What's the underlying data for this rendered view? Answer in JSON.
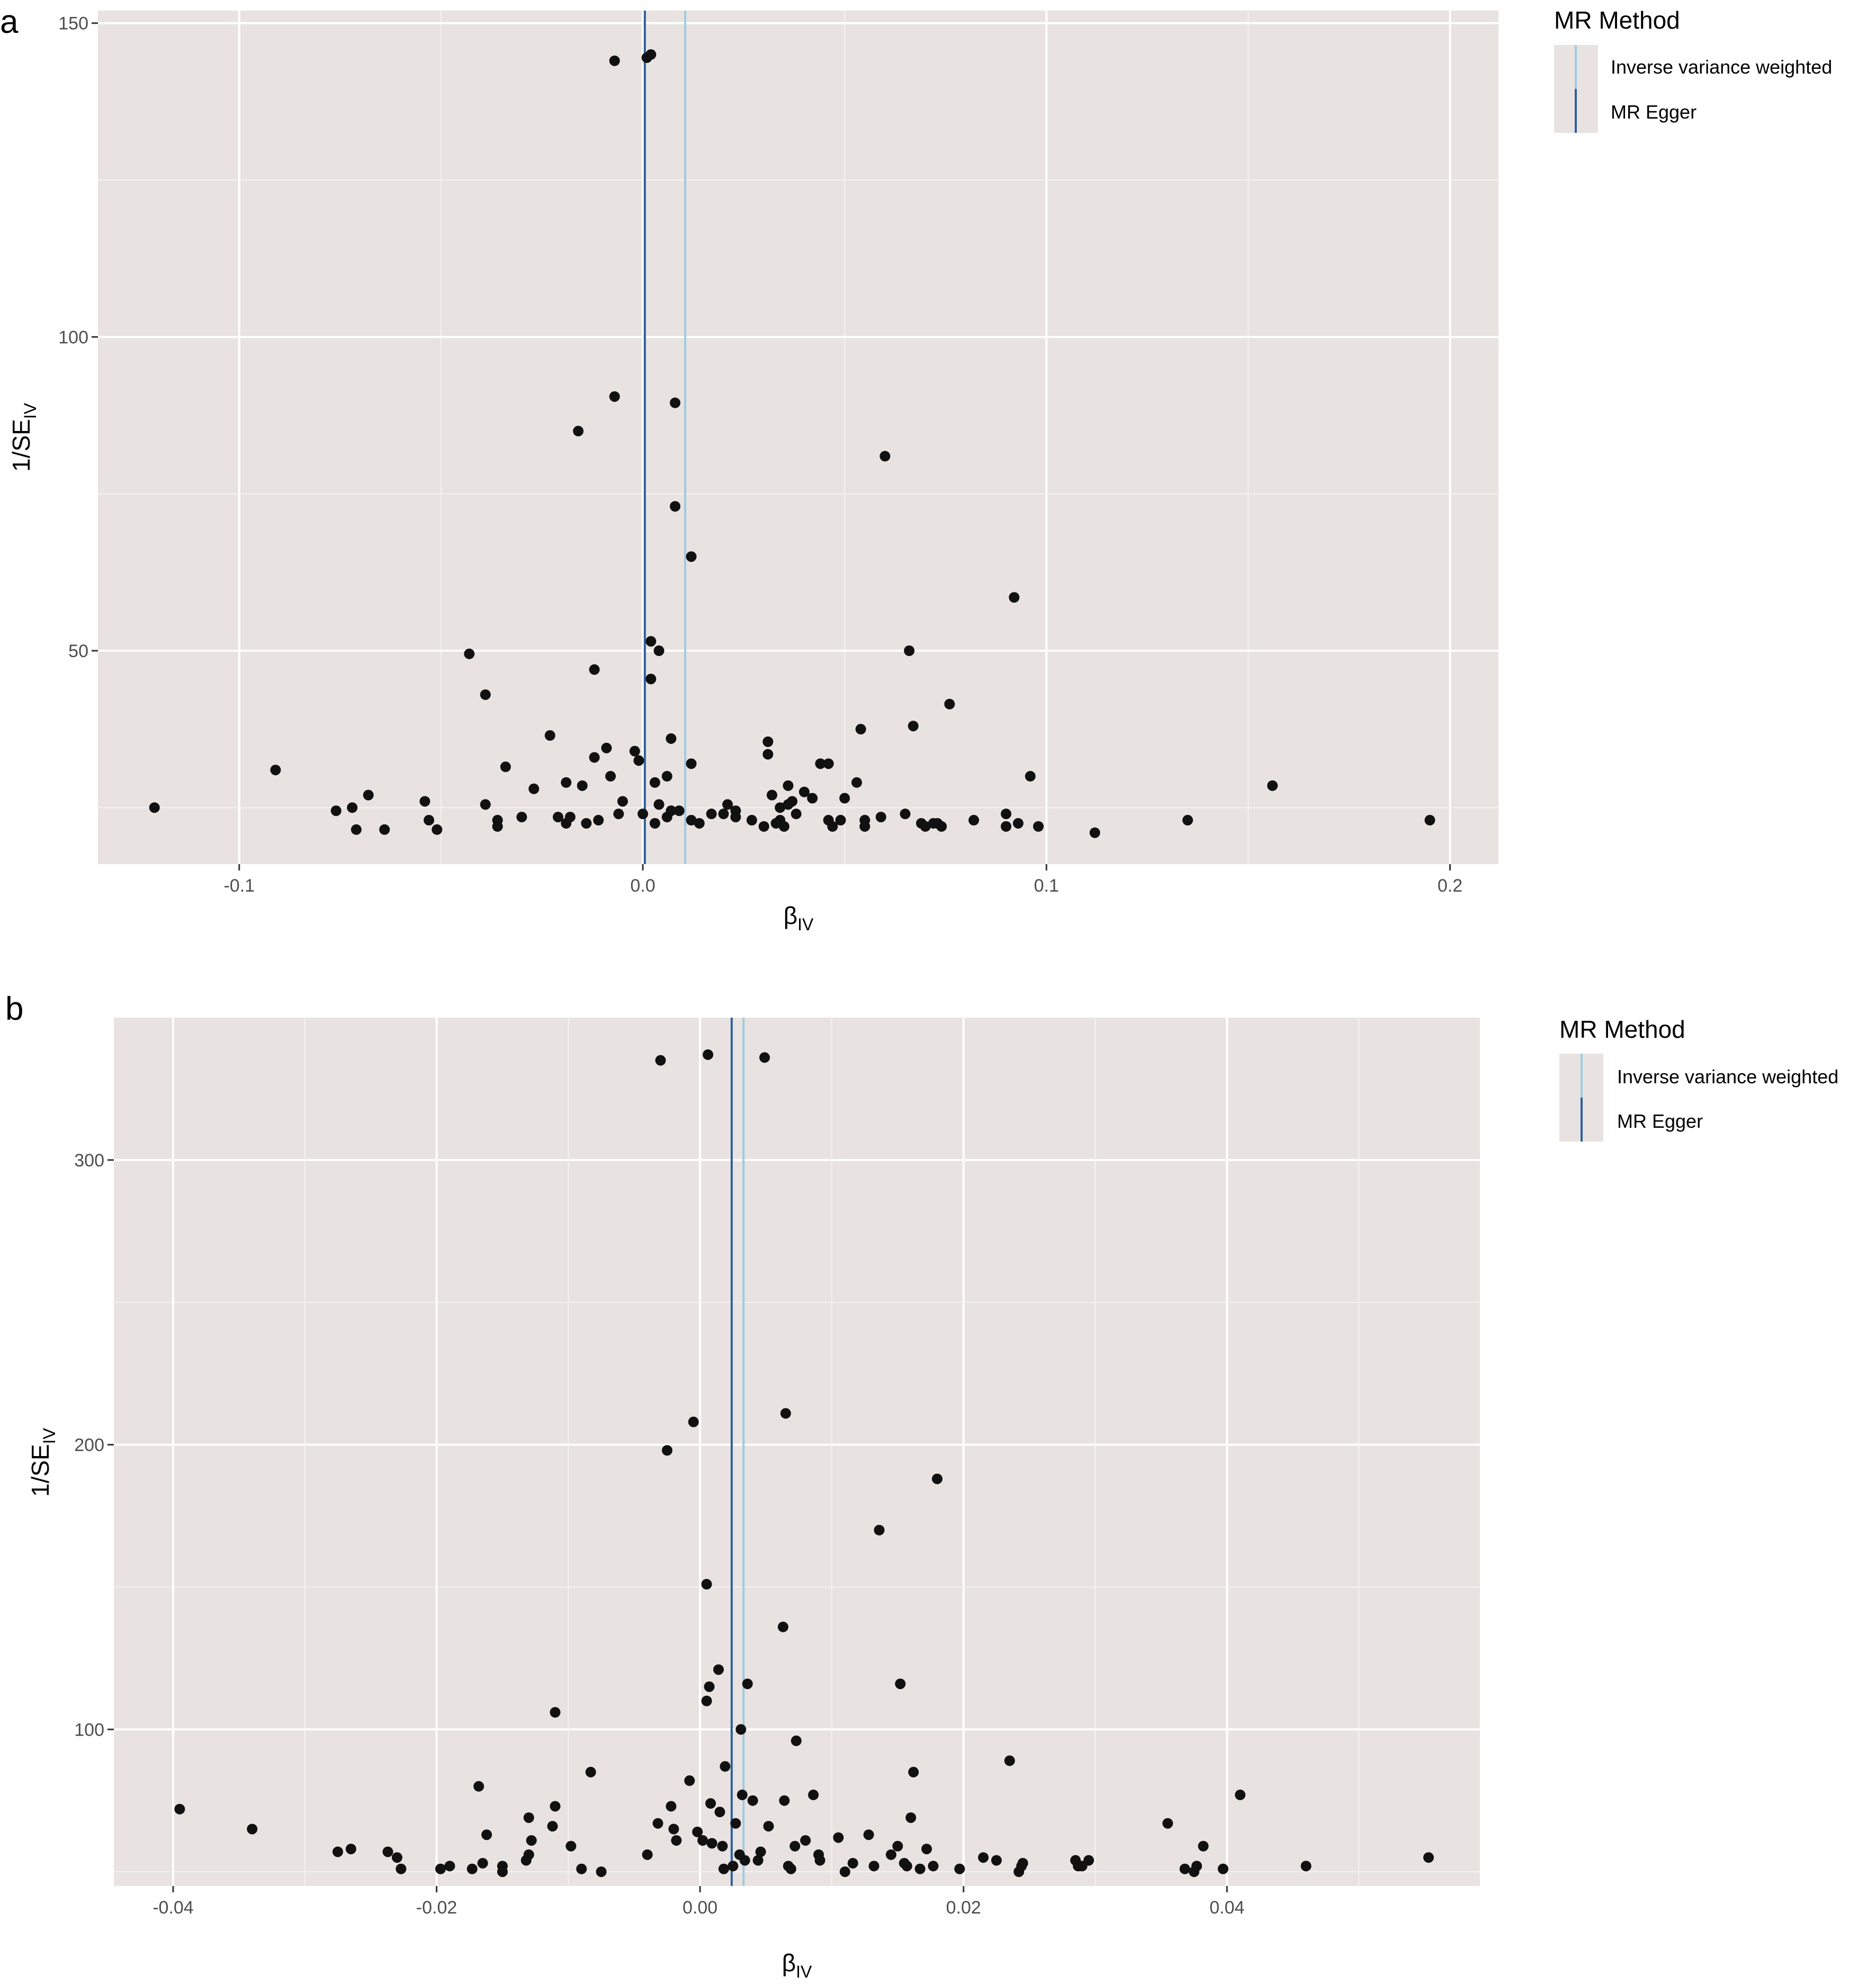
{
  "chart_data": [
    {
      "panel": "a",
      "type": "scatter",
      "xlabel": "β",
      "xlabel_sub": "IV",
      "ylabel": "1/SE",
      "ylabel_sub": "IV",
      "xlim": [
        -0.135,
        0.212
      ],
      "ylim": [
        16,
        152
      ],
      "x_ticks": [
        -0.1,
        0.0,
        0.1,
        0.2
      ],
      "x_tick_labels": [
        "-0.1",
        "0.0",
        "0.1",
        "0.2"
      ],
      "y_ticks": [
        50,
        100,
        150
      ],
      "y_tick_labels": [
        "50",
        "100",
        "150"
      ],
      "grid": true,
      "legend": {
        "title": "MR Method",
        "position": "right",
        "items": [
          {
            "label": "Inverse variance weighted",
            "color": "#9ecae1"
          },
          {
            "label": "MR Egger",
            "color": "#2c5fa0"
          }
        ]
      },
      "lines": [
        {
          "method": "Inverse variance weighted",
          "x": 0.0105,
          "color": "#9ecae1"
        },
        {
          "method": "MR Egger",
          "x": 0.0005,
          "color": "#2c5fa0"
        }
      ],
      "points": [
        [
          -0.121,
          25.0
        ],
        [
          -0.091,
          31.0
        ],
        [
          -0.076,
          24.5
        ],
        [
          -0.072,
          25.0
        ],
        [
          -0.071,
          21.5
        ],
        [
          -0.068,
          27.0
        ],
        [
          -0.064,
          21.5
        ],
        [
          -0.054,
          26.0
        ],
        [
          -0.053,
          23.0
        ],
        [
          -0.051,
          21.5
        ],
        [
          -0.043,
          49.5
        ],
        [
          -0.039,
          43.0
        ],
        [
          -0.039,
          25.5
        ],
        [
          -0.036,
          23.0
        ],
        [
          -0.036,
          22.0
        ],
        [
          -0.034,
          31.5
        ],
        [
          -0.03,
          23.5
        ],
        [
          -0.027,
          28.0
        ],
        [
          -0.023,
          36.5
        ],
        [
          -0.021,
          23.5
        ],
        [
          -0.019,
          22.5
        ],
        [
          -0.019,
          29.0
        ],
        [
          -0.018,
          23.5
        ],
        [
          -0.016,
          85.0
        ],
        [
          -0.015,
          28.5
        ],
        [
          -0.014,
          22.5
        ],
        [
          -0.012,
          33.0
        ],
        [
          -0.012,
          47.0
        ],
        [
          -0.011,
          23.0
        ],
        [
          -0.009,
          34.5
        ],
        [
          -0.008,
          30.0
        ],
        [
          -0.007,
          144.0
        ],
        [
          -0.007,
          90.5
        ],
        [
          -0.006,
          24.0
        ],
        [
          -0.005,
          26.0
        ],
        [
          -0.002,
          34.0
        ],
        [
          -0.001,
          32.5
        ],
        [
          0.0,
          24.0
        ],
        [
          0.001,
          144.5
        ],
        [
          0.002,
          145.0
        ],
        [
          0.002,
          51.5
        ],
        [
          0.002,
          45.5
        ],
        [
          0.003,
          29.0
        ],
        [
          0.003,
          22.5
        ],
        [
          0.004,
          50.0
        ],
        [
          0.004,
          25.5
        ],
        [
          0.006,
          30.0
        ],
        [
          0.006,
          23.5
        ],
        [
          0.007,
          36.0
        ],
        [
          0.007,
          24.5
        ],
        [
          0.008,
          89.5
        ],
        [
          0.008,
          73.0
        ],
        [
          0.009,
          24.5
        ],
        [
          0.012,
          65.0
        ],
        [
          0.012,
          32.0
        ],
        [
          0.012,
          23.0
        ],
        [
          0.014,
          22.5
        ],
        [
          0.017,
          24.0
        ],
        [
          0.02,
          24.0
        ],
        [
          0.021,
          25.5
        ],
        [
          0.023,
          24.5
        ],
        [
          0.023,
          23.5
        ],
        [
          0.027,
          23.0
        ],
        [
          0.03,
          22.0
        ],
        [
          0.031,
          33.5
        ],
        [
          0.031,
          35.5
        ],
        [
          0.032,
          27.0
        ],
        [
          0.033,
          22.5
        ],
        [
          0.034,
          23.0
        ],
        [
          0.034,
          25.0
        ],
        [
          0.035,
          22.0
        ],
        [
          0.036,
          25.5
        ],
        [
          0.036,
          28.5
        ],
        [
          0.037,
          26.0
        ],
        [
          0.038,
          24.0
        ],
        [
          0.04,
          27.5
        ],
        [
          0.042,
          26.5
        ],
        [
          0.044,
          32.0
        ],
        [
          0.046,
          32.0
        ],
        [
          0.046,
          23.0
        ],
        [
          0.047,
          22.0
        ],
        [
          0.049,
          23.0
        ],
        [
          0.05,
          26.5
        ],
        [
          0.053,
          29.0
        ],
        [
          0.054,
          37.5
        ],
        [
          0.055,
          23.0
        ],
        [
          0.055,
          22.0
        ],
        [
          0.059,
          23.5
        ],
        [
          0.06,
          81.0
        ],
        [
          0.065,
          24.0
        ],
        [
          0.066,
          50.0
        ],
        [
          0.067,
          38.0
        ],
        [
          0.069,
          22.5
        ],
        [
          0.07,
          22.0
        ],
        [
          0.072,
          22.5
        ],
        [
          0.073,
          22.5
        ],
        [
          0.074,
          22.0
        ],
        [
          0.076,
          41.5
        ],
        [
          0.082,
          23.0
        ],
        [
          0.09,
          24.0
        ],
        [
          0.09,
          22.0
        ],
        [
          0.092,
          58.5
        ],
        [
          0.093,
          22.5
        ],
        [
          0.096,
          30.0
        ],
        [
          0.098,
          22.0
        ],
        [
          0.112,
          21.0
        ],
        [
          0.135,
          23.0
        ],
        [
          0.156,
          28.5
        ],
        [
          0.195,
          23.0
        ]
      ]
    },
    {
      "panel": "b",
      "type": "scatter",
      "xlabel": "β",
      "xlabel_sub": "IV",
      "ylabel": "1/SE",
      "ylabel_sub": "IV",
      "xlim": [
        -0.0445,
        0.0592
      ],
      "ylim": [
        45,
        350
      ],
      "x_ticks": [
        -0.04,
        -0.02,
        0.0,
        0.02,
        0.04
      ],
      "x_tick_labels": [
        "-0.04",
        "-0.02",
        "0.00",
        "0.02",
        "0.04"
      ],
      "y_ticks": [
        100,
        200,
        300
      ],
      "y_tick_labels": [
        "100",
        "200",
        "300"
      ],
      "grid": true,
      "legend": {
        "title": "MR Method",
        "position": "right",
        "items": [
          {
            "label": "Inverse variance weighted",
            "color": "#9ecae1"
          },
          {
            "label": "MR Egger",
            "color": "#2c5fa0"
          }
        ]
      },
      "lines": [
        {
          "method": "Inverse variance weighted",
          "x": 0.0033,
          "color": "#9ecae1"
        },
        {
          "method": "MR Egger",
          "x": 0.0024,
          "color": "#2c5fa0"
        }
      ],
      "points": [
        [
          -0.0395,
          72
        ],
        [
          -0.034,
          65
        ],
        [
          -0.0275,
          57
        ],
        [
          -0.0265,
          58
        ],
        [
          -0.0237,
          57
        ],
        [
          -0.023,
          55
        ],
        [
          -0.0227,
          51
        ],
        [
          -0.0197,
          51
        ],
        [
          -0.019,
          52
        ],
        [
          -0.0173,
          51
        ],
        [
          -0.0168,
          80
        ],
        [
          -0.0165,
          53
        ],
        [
          -0.0162,
          63
        ],
        [
          -0.015,
          50
        ],
        [
          -0.015,
          52
        ],
        [
          -0.0132,
          54
        ],
        [
          -0.013,
          69
        ],
        [
          -0.013,
          56
        ],
        [
          -0.0128,
          61
        ],
        [
          -0.0112,
          66
        ],
        [
          -0.011,
          73
        ],
        [
          -0.011,
          106
        ],
        [
          -0.0098,
          59
        ],
        [
          -0.009,
          51
        ],
        [
          -0.0083,
          85
        ],
        [
          -0.0075,
          50
        ],
        [
          -0.004,
          56
        ],
        [
          -0.0032,
          67
        ],
        [
          -0.003,
          335
        ],
        [
          -0.0025,
          198
        ],
        [
          -0.0022,
          73
        ],
        [
          -0.002,
          65
        ],
        [
          -0.0018,
          61
        ],
        [
          -0.0008,
          82
        ],
        [
          -0.0005,
          208
        ],
        [
          -0.0002,
          64
        ],
        [
          0.0002,
          61
        ],
        [
          0.0005,
          151
        ],
        [
          0.0005,
          110
        ],
        [
          0.0006,
          337
        ],
        [
          0.0007,
          115
        ],
        [
          0.0008,
          74
        ],
        [
          0.0009,
          60
        ],
        [
          0.0014,
          121
        ],
        [
          0.0015,
          71
        ],
        [
          0.0017,
          59
        ],
        [
          0.0018,
          51
        ],
        [
          0.0019,
          87
        ],
        [
          0.0025,
          52
        ],
        [
          0.0027,
          67
        ],
        [
          0.003,
          56
        ],
        [
          0.0031,
          100
        ],
        [
          0.0032,
          77
        ],
        [
          0.0034,
          54
        ],
        [
          0.0036,
          116
        ],
        [
          0.004,
          75
        ],
        [
          0.0044,
          54
        ],
        [
          0.0046,
          57
        ],
        [
          0.0049,
          336
        ],
        [
          0.0052,
          66
        ],
        [
          0.0063,
          136
        ],
        [
          0.0064,
          75
        ],
        [
          0.0065,
          211
        ],
        [
          0.0067,
          52
        ],
        [
          0.0069,
          51
        ],
        [
          0.0072,
          59
        ],
        [
          0.0073,
          96
        ],
        [
          0.008,
          61
        ],
        [
          0.0086,
          77
        ],
        [
          0.009,
          56
        ],
        [
          0.0091,
          54
        ],
        [
          0.0105,
          62
        ],
        [
          0.011,
          50
        ],
        [
          0.0116,
          53
        ],
        [
          0.0128,
          63
        ],
        [
          0.0132,
          52
        ],
        [
          0.0136,
          170
        ],
        [
          0.0145,
          56
        ],
        [
          0.015,
          59
        ],
        [
          0.0152,
          116
        ],
        [
          0.0155,
          53
        ],
        [
          0.0157,
          52
        ],
        [
          0.016,
          69
        ],
        [
          0.0162,
          85
        ],
        [
          0.0167,
          51
        ],
        [
          0.0172,
          58
        ],
        [
          0.0177,
          52
        ],
        [
          0.018,
          188
        ],
        [
          0.0197,
          51
        ],
        [
          0.0215,
          55
        ],
        [
          0.0225,
          54
        ],
        [
          0.0235,
          89
        ],
        [
          0.0242,
          50
        ],
        [
          0.0244,
          52
        ],
        [
          0.0245,
          53
        ],
        [
          0.0285,
          54
        ],
        [
          0.0287,
          52
        ],
        [
          0.029,
          52
        ],
        [
          0.0295,
          54
        ],
        [
          0.0355,
          67
        ],
        [
          0.0368,
          51
        ],
        [
          0.0375,
          50
        ],
        [
          0.0377,
          52
        ],
        [
          0.0382,
          59
        ],
        [
          0.0397,
          51
        ],
        [
          0.041,
          77
        ],
        [
          0.046,
          52
        ],
        [
          0.0553,
          55
        ]
      ]
    }
  ]
}
